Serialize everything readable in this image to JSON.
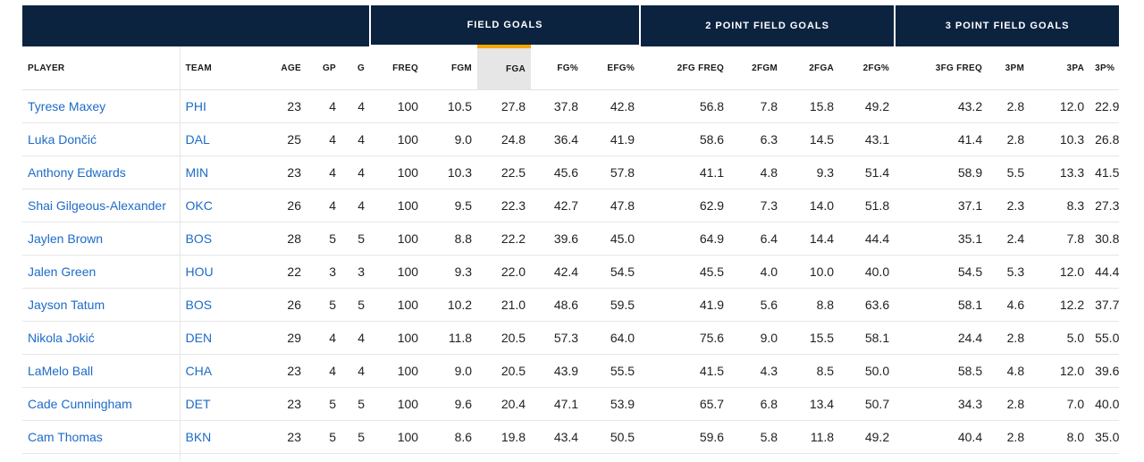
{
  "groups": {
    "field_goals": "FIELD GOALS",
    "two_point": "2 POINT FIELD GOALS",
    "three_point": "3 POINT FIELD GOALS"
  },
  "columns": {
    "player": "PLAYER",
    "team": "TEAM",
    "age": "AGE",
    "gp": "GP",
    "g": "G",
    "freq": "FREQ",
    "fgm": "FGM",
    "fga": "FGA",
    "fg_pct": "FG%",
    "efg_pct": "EFG%",
    "fg2_freq": "2FG FREQ",
    "fg2m": "2FGM",
    "fg2a": "2FGA",
    "fg2_pct": "2FG%",
    "fg3_freq": "3FG FREQ",
    "fg3m": "3PM",
    "fg3a": "3PA",
    "fg3_pct": "3P%"
  },
  "rows": [
    [
      "Tyrese Maxey",
      "PHI",
      "23",
      "4",
      "4",
      "100",
      "10.5",
      "27.8",
      "37.8",
      "42.8",
      "56.8",
      "7.8",
      "15.8",
      "49.2",
      "43.2",
      "2.8",
      "12.0",
      "22.9"
    ],
    [
      "Luka Dončić",
      "DAL",
      "25",
      "4",
      "4",
      "100",
      "9.0",
      "24.8",
      "36.4",
      "41.9",
      "58.6",
      "6.3",
      "14.5",
      "43.1",
      "41.4",
      "2.8",
      "10.3",
      "26.8"
    ],
    [
      "Anthony Edwards",
      "MIN",
      "23",
      "4",
      "4",
      "100",
      "10.3",
      "22.5",
      "45.6",
      "57.8",
      "41.1",
      "4.8",
      "9.3",
      "51.4",
      "58.9",
      "5.5",
      "13.3",
      "41.5"
    ],
    [
      "Shai Gilgeous-Alexander",
      "OKC",
      "26",
      "4",
      "4",
      "100",
      "9.5",
      "22.3",
      "42.7",
      "47.8",
      "62.9",
      "7.3",
      "14.0",
      "51.8",
      "37.1",
      "2.3",
      "8.3",
      "27.3"
    ],
    [
      "Jaylen Brown",
      "BOS",
      "28",
      "5",
      "5",
      "100",
      "8.8",
      "22.2",
      "39.6",
      "45.0",
      "64.9",
      "6.4",
      "14.4",
      "44.4",
      "35.1",
      "2.4",
      "7.8",
      "30.8"
    ],
    [
      "Jalen Green",
      "HOU",
      "22",
      "3",
      "3",
      "100",
      "9.3",
      "22.0",
      "42.4",
      "54.5",
      "45.5",
      "4.0",
      "10.0",
      "40.0",
      "54.5",
      "5.3",
      "12.0",
      "44.4"
    ],
    [
      "Jayson Tatum",
      "BOS",
      "26",
      "5",
      "5",
      "100",
      "10.2",
      "21.0",
      "48.6",
      "59.5",
      "41.9",
      "5.6",
      "8.8",
      "63.6",
      "58.1",
      "4.6",
      "12.2",
      "37.7"
    ],
    [
      "Nikola Jokić",
      "DEN",
      "29",
      "4",
      "4",
      "100",
      "11.8",
      "20.5",
      "57.3",
      "64.0",
      "75.6",
      "9.0",
      "15.5",
      "58.1",
      "24.4",
      "2.8",
      "5.0",
      "55.0"
    ],
    [
      "LaMelo Ball",
      "CHA",
      "23",
      "4",
      "4",
      "100",
      "9.0",
      "20.5",
      "43.9",
      "55.5",
      "41.5",
      "4.3",
      "8.5",
      "50.0",
      "58.5",
      "4.8",
      "12.0",
      "39.6"
    ],
    [
      "Cade Cunningham",
      "DET",
      "23",
      "5",
      "5",
      "100",
      "9.6",
      "20.4",
      "47.1",
      "53.9",
      "65.7",
      "6.8",
      "13.4",
      "50.7",
      "34.3",
      "2.8",
      "7.0",
      "40.0"
    ],
    [
      "Cam Thomas",
      "BKN",
      "23",
      "5",
      "5",
      "100",
      "8.6",
      "19.8",
      "43.4",
      "50.5",
      "59.6",
      "5.8",
      "11.8",
      "49.2",
      "40.4",
      "2.8",
      "8.0",
      "35.0"
    ]
  ],
  "colors": {
    "header_bg": "#0c2340",
    "sort_accent": "#f5a800",
    "link": "#1d6bc8"
  }
}
